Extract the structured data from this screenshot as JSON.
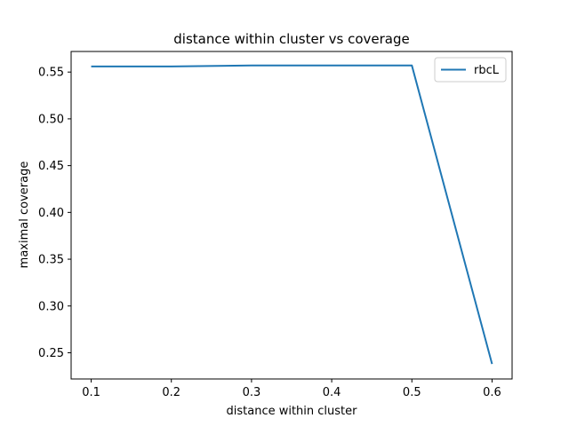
{
  "chart_data": {
    "type": "line",
    "title": "distance within cluster vs coverage",
    "xlabel": "distance within cluster",
    "ylabel": "maximal coverage",
    "x": [
      0.1,
      0.2,
      0.3,
      0.4,
      0.5,
      0.6
    ],
    "xlim": [
      0.075,
      0.625
    ],
    "ylim": [
      0.222,
      0.572
    ],
    "xticks": [
      0.1,
      0.2,
      0.3,
      0.4,
      0.5,
      0.6
    ],
    "xtick_labels": [
      "0.1",
      "0.2",
      "0.3",
      "0.4",
      "0.5",
      "0.6"
    ],
    "yticks": [
      0.25,
      0.3,
      0.35,
      0.4,
      0.45,
      0.5,
      0.55
    ],
    "ytick_labels": [
      "0.25",
      "0.30",
      "0.35",
      "0.40",
      "0.45",
      "0.50",
      "0.55"
    ],
    "grid": false,
    "legend_position": "top-right",
    "series": [
      {
        "name": "rbcL",
        "color": "#1f77b4",
        "values": [
          0.556,
          0.556,
          0.557,
          0.557,
          0.557,
          0.238
        ]
      }
    ]
  }
}
